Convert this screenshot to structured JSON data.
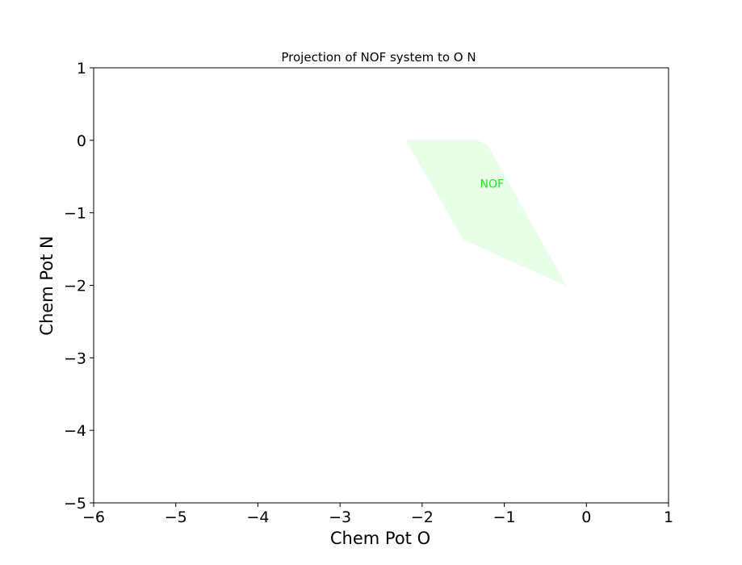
{
  "chart_data": {
    "type": "area",
    "title": "Projection of NOF system to O N",
    "xlabel": "Chem Pot O",
    "ylabel": "Chem Pot N",
    "xlim": [
      -6,
      1
    ],
    "ylim": [
      -5,
      1
    ],
    "xticks": [
      -6,
      -5,
      -4,
      -3,
      -2,
      -1,
      0,
      1
    ],
    "yticks": [
      -5,
      -4,
      -3,
      -2,
      -1,
      0,
      1
    ],
    "xtick_labels": [
      "−6",
      "−5",
      "−4",
      "−3",
      "−2",
      "−1",
      "0",
      "1"
    ],
    "ytick_labels": [
      "−5",
      "−4",
      "−3",
      "−2",
      "−1",
      "0",
      "1"
    ],
    "grid": false,
    "regions": [
      {
        "label": "NOF",
        "fill_color": "#e6ffe6",
        "label_color": "#22ee22",
        "label_at": [
          -1.15,
          -0.6
        ],
        "polygon": [
          [
            -2.2,
            0
          ],
          [
            -1.33,
            0
          ],
          [
            -1.2,
            -0.07
          ],
          [
            -0.24,
            -2.01
          ],
          [
            -1.5,
            -1.37
          ]
        ]
      }
    ]
  }
}
